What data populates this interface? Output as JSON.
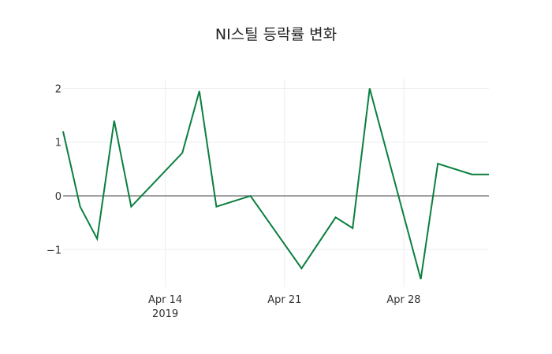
{
  "chart_data": {
    "type": "line",
    "title": "NI스틸 등락률 변화",
    "xlabel": "",
    "ylabel": "",
    "x": [
      "2019-04-08",
      "2019-04-09",
      "2019-04-10",
      "2019-04-11",
      "2019-04-12",
      "2019-04-15",
      "2019-04-16",
      "2019-04-17",
      "2019-04-19",
      "2019-04-22",
      "2019-04-24",
      "2019-04-25",
      "2019-04-26",
      "2019-04-29",
      "2019-04-30",
      "2019-05-02",
      "2019-05-03"
    ],
    "series": [
      {
        "name": "등락률",
        "color": "#0a7f3f",
        "values": [
          1.2,
          -0.2,
          -0.8,
          1.4,
          -0.2,
          0.8,
          1.95,
          -0.2,
          0.0,
          -1.35,
          -0.4,
          -0.6,
          2.0,
          -1.55,
          0.6,
          0.4,
          0.4
        ]
      }
    ],
    "xticks": [
      {
        "date": "2019-04-14",
        "label": "Apr 14",
        "sublabel": "2019"
      },
      {
        "date": "2019-04-21",
        "label": "Apr 21",
        "sublabel": ""
      },
      {
        "date": "2019-04-28",
        "label": "Apr 28",
        "sublabel": ""
      }
    ],
    "yticks": [
      2,
      1,
      0,
      -1
    ],
    "ytick_labels": [
      "2",
      "1",
      "0",
      "−1"
    ],
    "xlim": [
      "2019-04-08",
      "2019-05-03"
    ],
    "ylim": [
      -1.7,
      2.2
    ],
    "grid": true,
    "zeroline": true,
    "legend": false
  }
}
